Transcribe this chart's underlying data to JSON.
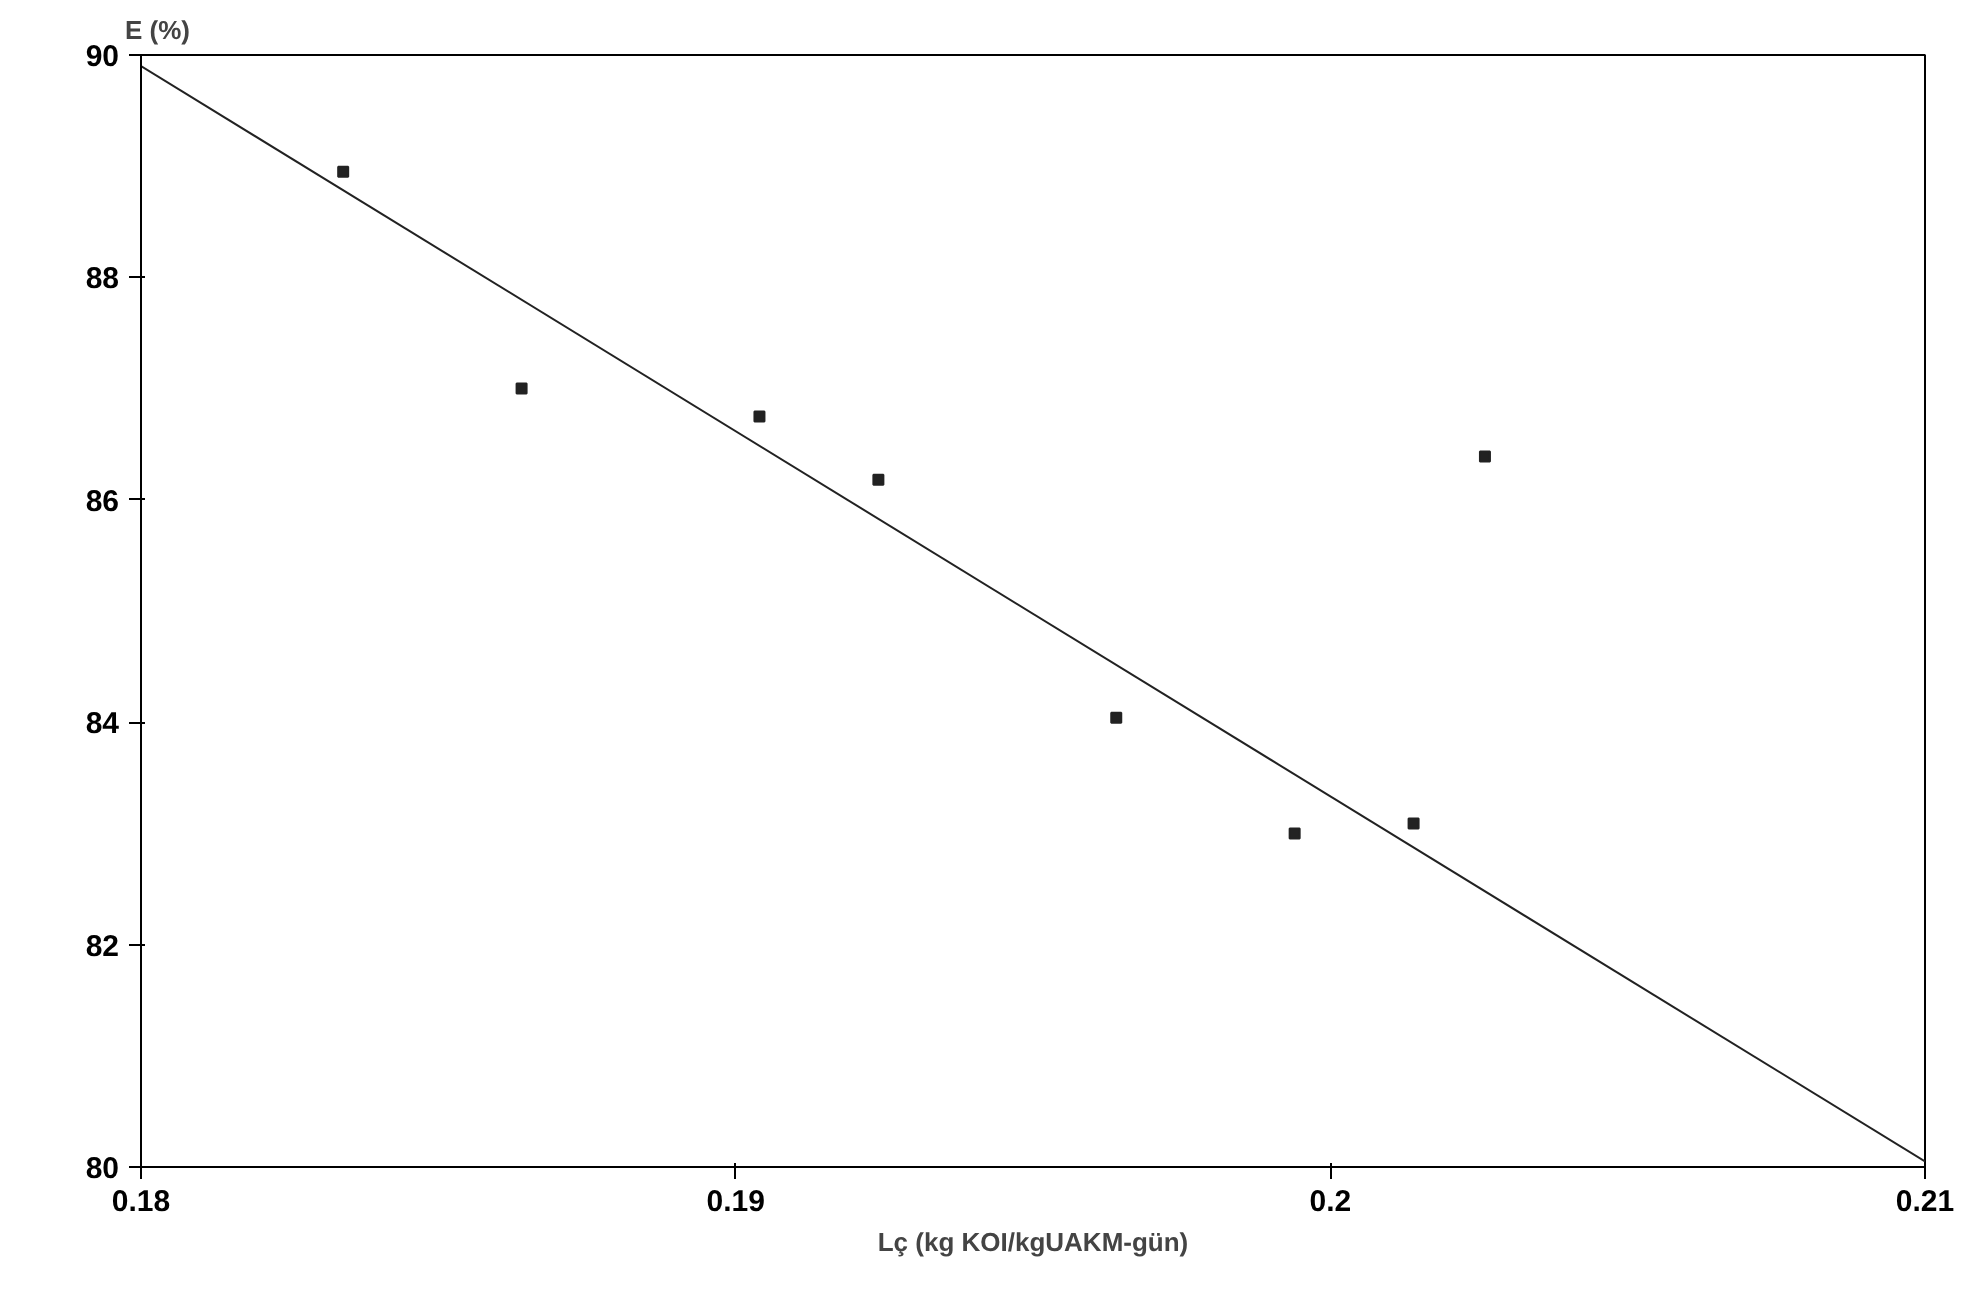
{
  "chart_data": {
    "type": "scatter",
    "xlabel": "Lç (kg KOI/kgUAKM-gün)",
    "ylabel": "E (%)",
    "xlim": [
      0.18,
      0.21
    ],
    "ylim": [
      80,
      90
    ],
    "xticks": [
      0.18,
      0.19,
      0.2,
      0.21
    ],
    "yticks": [
      80,
      82,
      84,
      86,
      88,
      90
    ],
    "grid": false,
    "series": [
      {
        "marker": "square",
        "color": "#222222",
        "x": [
          0.1834,
          0.1864,
          0.1904,
          0.1924,
          0.1964,
          0.1994,
          0.2014,
          0.2026
        ],
        "values": [
          88.95,
          87.0,
          86.75,
          86.18,
          84.04,
          83.0,
          83.09,
          86.39
        ]
      },
      {
        "type": "line",
        "marker": "none",
        "color": "#222222",
        "x": [
          0.18,
          0.21
        ],
        "values": [
          89.9,
          80.05
        ]
      }
    ]
  }
}
